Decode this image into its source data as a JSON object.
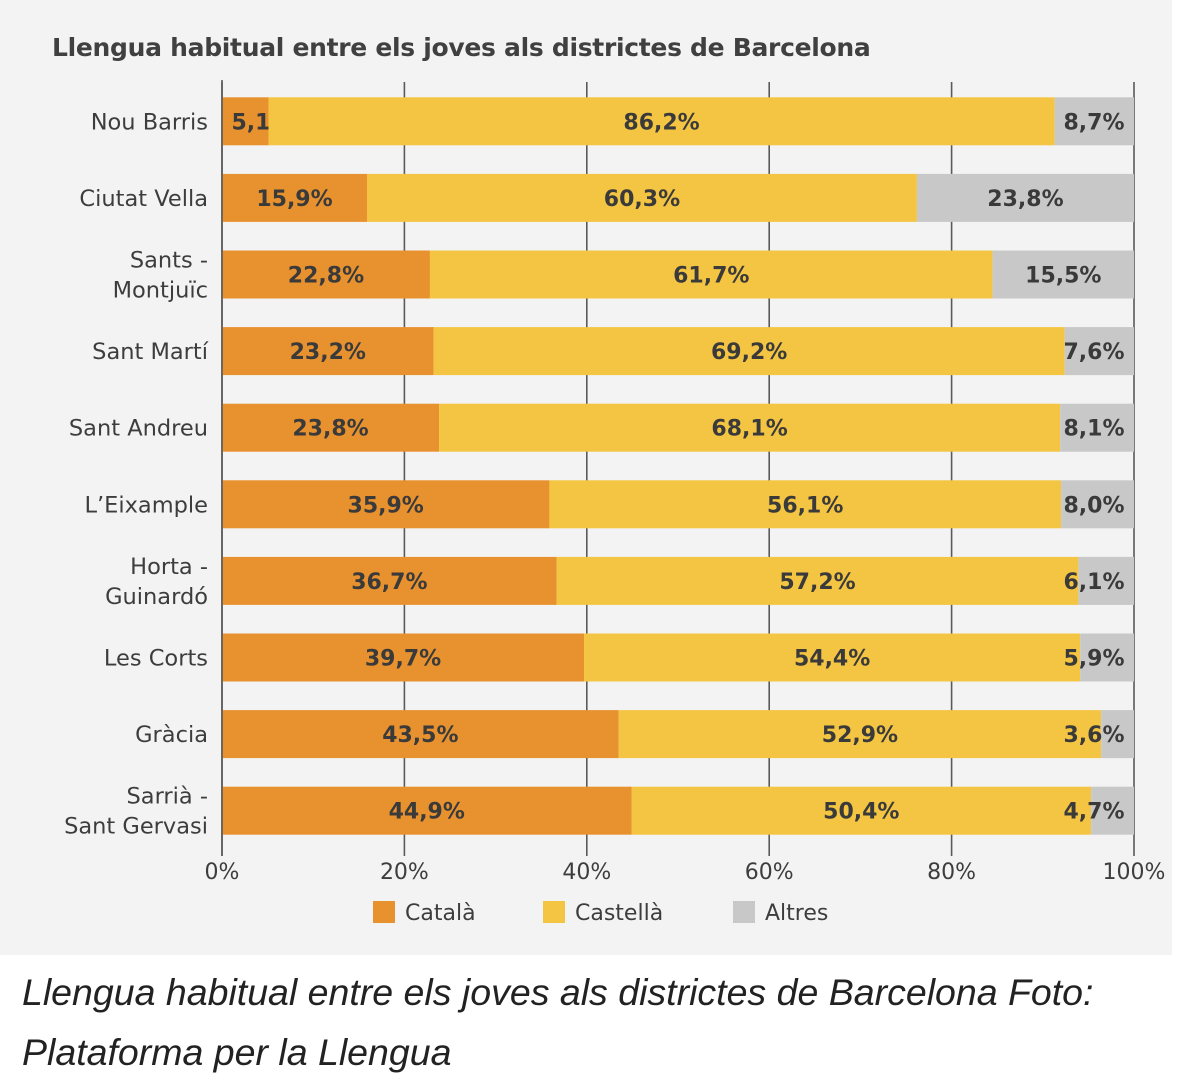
{
  "chart_data": {
    "type": "bar",
    "orientation": "horizontal",
    "stacked": true,
    "title": "Llengua habitual entre els joves als districtes de Barcelona",
    "categories": [
      "Nou Barris",
      "Ciutat Vella",
      "Sants - Montjuïc",
      "Sant Martí",
      "Sant Andreu",
      "L’Eixample",
      "Horta - Guinardó",
      "Les Corts",
      "Gràcia",
      "Sarrià - Sant Gervasi"
    ],
    "category_lines": [
      [
        "Nou Barris"
      ],
      [
        "Ciutat Vella"
      ],
      [
        "Sants -",
        "Montjuïc"
      ],
      [
        "Sant Martí"
      ],
      [
        "Sant Andreu"
      ],
      [
        "L’Eixample"
      ],
      [
        "Horta -",
        "Guinardó"
      ],
      [
        "Les Corts"
      ],
      [
        "Gràcia"
      ],
      [
        "Sarrià -",
        "Sant Gervasi"
      ]
    ],
    "series": [
      {
        "name": "Català",
        "color": "#e8922f",
        "values": [
          5.1,
          15.9,
          22.8,
          23.2,
          23.8,
          35.9,
          36.7,
          39.7,
          43.5,
          44.9
        ],
        "labels": [
          "5,1%",
          "15,9%",
          "22,8%",
          "23,2%",
          "23,8%",
          "35,9%",
          "36,7%",
          "39,7%",
          "43,5%",
          "44,9%"
        ]
      },
      {
        "name": "Castellà",
        "color": "#f4c542",
        "values": [
          86.2,
          60.3,
          61.7,
          69.2,
          68.1,
          56.1,
          57.2,
          54.4,
          52.9,
          50.4
        ],
        "labels": [
          "86,2%",
          "60,3%",
          "61,7%",
          "69,2%",
          "68,1%",
          "56,1%",
          "57,2%",
          "54,4%",
          "52,9%",
          "50,4%"
        ]
      },
      {
        "name": "Altres",
        "color": "#c8c8c8",
        "values": [
          8.7,
          23.8,
          15.5,
          7.6,
          8.1,
          8.0,
          6.1,
          5.9,
          3.6,
          4.7
        ],
        "labels": [
          "8,7%",
          "23,8%",
          "15,5%",
          "7,6%",
          "8,1%",
          "8,0%",
          "6,1%",
          "5,9%",
          "3,6%",
          "4,7%"
        ]
      }
    ],
    "xlim": [
      0,
      100
    ],
    "xticks": [
      0,
      20,
      40,
      60,
      80,
      100
    ],
    "xtick_labels": [
      "0%",
      "20%",
      "40%",
      "60%",
      "80%",
      "100%"
    ],
    "xlabel": "",
    "ylabel": "",
    "grid": true,
    "legend_position": "bottom"
  },
  "caption": "Llengua habitual entre els joves als districtes de Barcelona Foto: Plataforma per la Llengua"
}
